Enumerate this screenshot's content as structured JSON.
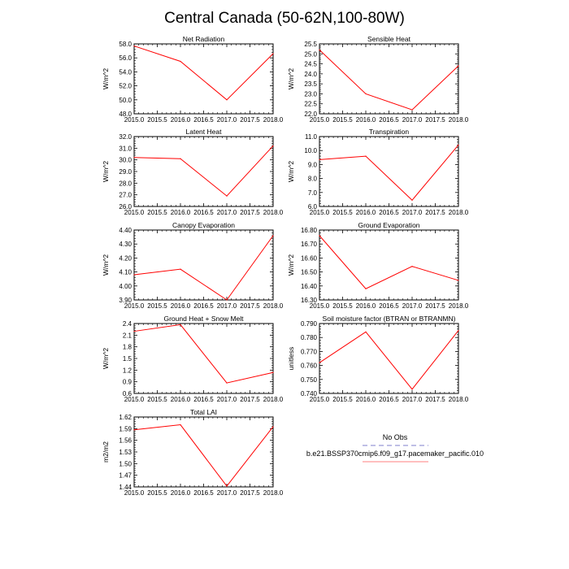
{
  "figure": {
    "title": "Central Canada (50-62N,100-80W)"
  },
  "colors": {
    "series_line": "#ff0000",
    "obs_line": "#aaaadd",
    "legend_model_line": "#ff9999",
    "axis": "#000000"
  },
  "legend": {
    "obs_label": "No Obs",
    "model_label": "b.e21.BSSP370cmip6.f09_g17.pacemaker_pacific.010"
  },
  "chart_data": [
    {
      "type": "line",
      "title": "Net Radiation",
      "ylabel": "W/m^2",
      "x": [
        2015,
        2016,
        2017,
        2018
      ],
      "values": [
        57.7,
        55.5,
        50.0,
        56.6
      ],
      "xlim": [
        2015,
        2018
      ],
      "ylim": [
        48,
        58
      ],
      "xticks": [
        "2015.0",
        "2015.5",
        "2016.0",
        "2016.5",
        "2017.0",
        "2017.5",
        "2018.0"
      ],
      "yticks": [
        "48.0",
        "50.0",
        "52.0",
        "54.0",
        "56.0",
        "58.0"
      ]
    },
    {
      "type": "line",
      "title": "Sensible Heat",
      "ylabel": "W/m^2",
      "x": [
        2015,
        2016,
        2017,
        2018
      ],
      "values": [
        25.2,
        23.0,
        22.2,
        24.4
      ],
      "xlim": [
        2015,
        2018
      ],
      "ylim": [
        22,
        25.5
      ],
      "xticks": [
        "2015.0",
        "2015.5",
        "2016.0",
        "2016.5",
        "2017.0",
        "2017.5",
        "2018.0"
      ],
      "yticks": [
        "22.0",
        "22.5",
        "23.0",
        "23.5",
        "24.0",
        "24.5",
        "25.0",
        "25.5"
      ]
    },
    {
      "type": "line",
      "title": "Latent Heat",
      "ylabel": "W/m^2",
      "x": [
        2015,
        2016,
        2017,
        2018
      ],
      "values": [
        30.2,
        30.1,
        26.9,
        31.2
      ],
      "xlim": [
        2015,
        2018
      ],
      "ylim": [
        26,
        32
      ],
      "xticks": [
        "2015.0",
        "2015.5",
        "2016.0",
        "2016.5",
        "2017.0",
        "2017.5",
        "2018.0"
      ],
      "yticks": [
        "26.0",
        "27.0",
        "28.0",
        "29.0",
        "30.0",
        "31.0",
        "32.0"
      ]
    },
    {
      "type": "line",
      "title": "Transpiration",
      "ylabel": "W/m^2",
      "x": [
        2015,
        2016,
        2017,
        2018
      ],
      "values": [
        9.35,
        9.6,
        6.45,
        10.4
      ],
      "xlim": [
        2015,
        2018
      ],
      "ylim": [
        6,
        11
      ],
      "xticks": [
        "2015.0",
        "2015.5",
        "2016.0",
        "2016.5",
        "2017.0",
        "2017.5",
        "2018.0"
      ],
      "yticks": [
        "6.0",
        "7.0",
        "8.0",
        "9.0",
        "10.0",
        "11.0"
      ]
    },
    {
      "type": "line",
      "title": "Canopy Evaporation",
      "ylabel": "W/m^2",
      "x": [
        2015,
        2016,
        2017,
        2018
      ],
      "values": [
        4.08,
        4.12,
        3.9,
        4.36
      ],
      "xlim": [
        2015,
        2018
      ],
      "ylim": [
        3.9,
        4.4
      ],
      "xticks": [
        "2015.0",
        "2015.5",
        "2016.0",
        "2016.5",
        "2017.0",
        "2017.5",
        "2018.0"
      ],
      "yticks": [
        "3.90",
        "4.00",
        "4.10",
        "4.20",
        "4.30",
        "4.40"
      ]
    },
    {
      "type": "line",
      "title": "Ground Evaporation",
      "ylabel": "W/m^2",
      "x": [
        2015,
        2016,
        2017,
        2018
      ],
      "values": [
        16.76,
        16.38,
        16.54,
        16.44
      ],
      "xlim": [
        2015,
        2018
      ],
      "ylim": [
        16.3,
        16.8
      ],
      "xticks": [
        "2015.0",
        "2015.5",
        "2016.0",
        "2016.5",
        "2017.0",
        "2017.5",
        "2018.0"
      ],
      "yticks": [
        "16.30",
        "16.40",
        "16.50",
        "16.60",
        "16.70",
        "16.80"
      ]
    },
    {
      "type": "line",
      "title": "Ground Heat + Snow Melt",
      "ylabel": "W/m^2",
      "x": [
        2015,
        2016,
        2017,
        2018
      ],
      "values": [
        2.2,
        2.37,
        0.87,
        1.14
      ],
      "xlim": [
        2015,
        2018
      ],
      "ylim": [
        0.6,
        2.4
      ],
      "xticks": [
        "2015.0",
        "2015.5",
        "2016.0",
        "2016.5",
        "2017.0",
        "2017.5",
        "2018.0"
      ],
      "yticks": [
        "0.6",
        "0.9",
        "1.2",
        "1.5",
        "1.8",
        "2.1",
        "2.4"
      ]
    },
    {
      "type": "line",
      "title": "Soil moisture factor (BTRAN or BTRANMN)",
      "ylabel": "unitless",
      "x": [
        2015,
        2016,
        2017,
        2018
      ],
      "values": [
        0.762,
        0.784,
        0.743,
        0.785
      ],
      "xlim": [
        2015,
        2018
      ],
      "ylim": [
        0.74,
        0.79
      ],
      "xticks": [
        "2015.0",
        "2015.5",
        "2016.0",
        "2016.5",
        "2017.0",
        "2017.5",
        "2018.0"
      ],
      "yticks": [
        "0.740",
        "0.750",
        "0.760",
        "0.770",
        "0.780",
        "0.790"
      ]
    },
    {
      "type": "line",
      "title": "Total LAI",
      "ylabel": "m2/m2",
      "x": [
        2015,
        2016,
        2017,
        2018
      ],
      "values": [
        1.587,
        1.6,
        1.442,
        1.595
      ],
      "xlim": [
        2015,
        2018
      ],
      "ylim": [
        1.44,
        1.62
      ],
      "xticks": [
        "2015.0",
        "2015.5",
        "2016.0",
        "2016.5",
        "2017.0",
        "2017.5",
        "2018.0"
      ],
      "yticks": [
        "1.44",
        "1.47",
        "1.50",
        "1.53",
        "1.56",
        "1.59",
        "1.62"
      ]
    }
  ]
}
